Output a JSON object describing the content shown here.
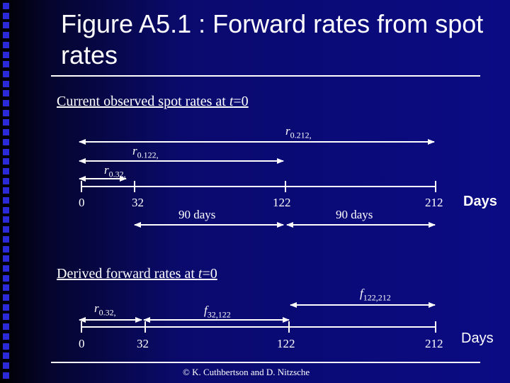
{
  "title": "Figure A5.1 : Forward rates from spot rates",
  "spot_section": {
    "heading": "Current observed spot rates at t=0",
    "rates": [
      "r0.212,",
      "r0.122,",
      "r0.32,"
    ],
    "ticks": [
      "0",
      "32",
      "122",
      "212"
    ],
    "intervals": [
      "90 days",
      "90 days"
    ],
    "unit": "Days"
  },
  "forward_section": {
    "heading": "Derived forward rates at t=0",
    "rates": [
      "r0.32,",
      "f32,122",
      "f122,212"
    ],
    "ticks": [
      "0",
      "32",
      "122",
      "212"
    ],
    "unit": "Days"
  },
  "credit": "© K. Cuthbertson and D. Nitzsche"
}
